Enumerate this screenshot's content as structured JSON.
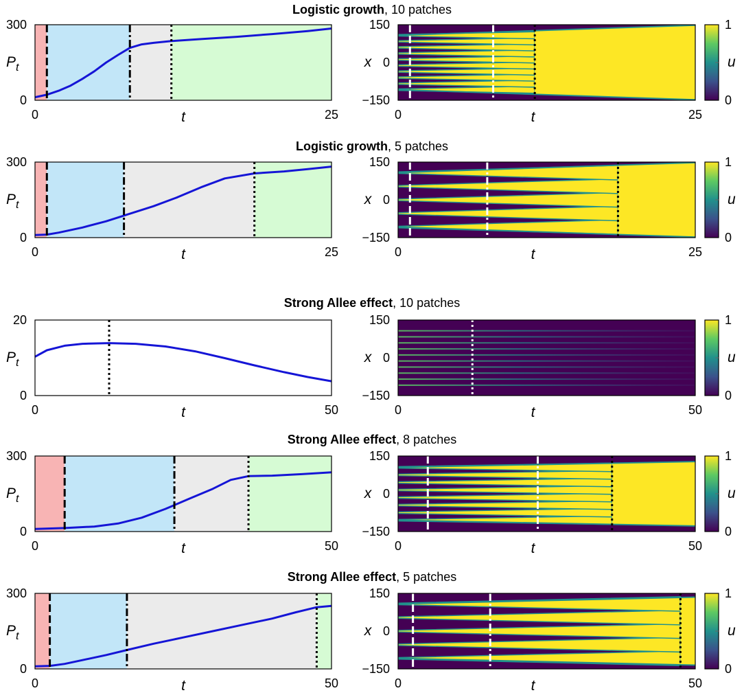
{
  "figure": {
    "label_pop": "P",
    "label_pop_sub": "t",
    "label_time": "t",
    "label_space": "x",
    "label_cbar": "u"
  },
  "colors": {
    "phase1": "#f8b4b4",
    "phase2": "#c2e6f8",
    "phase3": "#ebebeb",
    "phase4": "#d6fbd4",
    "curve": "#1515d6",
    "viridis_low": "#440154",
    "viridis_high": "#fde725"
  },
  "chart_data": [
    {
      "type": "line",
      "kind": "population",
      "title_bold": "Logistic growth",
      "title_rest": ", 10 patches",
      "xlabel": "t",
      "ylabel": "P_t",
      "xlim": [
        0,
        25
      ],
      "ylim": [
        0,
        300
      ],
      "xticks": [
        "0",
        "25"
      ],
      "yticks": [
        "0",
        "300"
      ],
      "phase_boundaries": [
        1,
        8,
        11.5,
        25
      ],
      "vlines": [
        {
          "x": 1,
          "style": "dashed"
        },
        {
          "x": 8,
          "style": "dashdot"
        },
        {
          "x": 11.5,
          "style": "dotted"
        }
      ],
      "series": [
        {
          "name": "P_t",
          "x": [
            0,
            1,
            2,
            3,
            4,
            5,
            6,
            7,
            8,
            9,
            10,
            11.5,
            14,
            17,
            20,
            23,
            25
          ],
          "values": [
            12,
            22,
            38,
            58,
            85,
            115,
            150,
            180,
            208,
            222,
            228,
            235,
            243,
            252,
            263,
            275,
            285
          ]
        }
      ]
    },
    {
      "type": "heatmap",
      "kind": "spacetime",
      "xlabel": "t",
      "ylabel": "x",
      "xlim": [
        0,
        25
      ],
      "ylim": [
        -150,
        150
      ],
      "xticks": [
        "0",
        "25"
      ],
      "yticks": [
        "150",
        "0",
        "−150"
      ],
      "colorbar": {
        "label": "u",
        "ticks": [
          "1",
          "0"
        ],
        "range": [
          0,
          1
        ]
      },
      "patches": [
        -108,
        -84,
        -60,
        -36,
        -12,
        12,
        36,
        60,
        84,
        108
      ],
      "patch_halfwidth": 3,
      "merge_time": 11.5,
      "front_start": 108,
      "front_end": 148,
      "vlines": [
        {
          "x": 1,
          "style": "dashed"
        },
        {
          "x": 8,
          "style": "dashdot"
        },
        {
          "x": 11.5,
          "style": "dotted"
        }
      ]
    },
    {
      "type": "line",
      "kind": "population",
      "title_bold": "Logistic growth",
      "title_rest": ", 5 patches",
      "xlabel": "t",
      "ylabel": "P_t",
      "xlim": [
        0,
        25
      ],
      "ylim": [
        0,
        300
      ],
      "xticks": [
        "0",
        "25"
      ],
      "yticks": [
        "0",
        "300"
      ],
      "phase_boundaries": [
        1,
        7.5,
        18.5,
        25
      ],
      "vlines": [
        {
          "x": 1,
          "style": "dashed"
        },
        {
          "x": 7.5,
          "style": "dashdot"
        },
        {
          "x": 18.5,
          "style": "dotted"
        }
      ],
      "series": [
        {
          "name": "P_t",
          "x": [
            0,
            1,
            2,
            4,
            6,
            8,
            10,
            12,
            14,
            16,
            18.5,
            21,
            23,
            25
          ],
          "values": [
            10,
            12,
            20,
            40,
            65,
            95,
            125,
            160,
            200,
            235,
            255,
            263,
            272,
            282
          ]
        }
      ]
    },
    {
      "type": "heatmap",
      "kind": "spacetime",
      "xlabel": "t",
      "ylabel": "x",
      "xlim": [
        0,
        25
      ],
      "ylim": [
        -150,
        150
      ],
      "xticks": [
        "0",
        "25"
      ],
      "yticks": [
        "150",
        "0",
        "−150"
      ],
      "colorbar": {
        "label": "u",
        "ticks": [
          "1",
          "0"
        ],
        "range": [
          0,
          1
        ]
      },
      "patches": [
        -108,
        -54,
        0,
        54,
        108
      ],
      "patch_halfwidth": 3,
      "merge_time": 18.5,
      "front_start": 108,
      "front_end": 148,
      "vlines": [
        {
          "x": 1,
          "style": "dashed"
        },
        {
          "x": 7.5,
          "style": "dashdot"
        },
        {
          "x": 18.5,
          "style": "dotted"
        }
      ]
    },
    {
      "type": "line",
      "kind": "population",
      "title_bold": "Strong Allee effect",
      "title_rest": ", 10 patches",
      "xlabel": "t",
      "ylabel": "P_t",
      "xlim": [
        0,
        50
      ],
      "ylim": [
        0,
        20
      ],
      "xticks": [
        "0",
        "50"
      ],
      "yticks": [
        "0",
        "20"
      ],
      "phase_boundaries": [],
      "vlines": [
        {
          "x": 12.5,
          "style": "dotted"
        }
      ],
      "series": [
        {
          "name": "P_t",
          "x": [
            0,
            2,
            5,
            8,
            12.5,
            17,
            22,
            27,
            32,
            37,
            42,
            46,
            50
          ],
          "values": [
            10.3,
            12,
            13.2,
            13.7,
            13.9,
            13.7,
            13,
            11.7,
            9.9,
            8,
            6.2,
            4.9,
            3.8
          ]
        }
      ]
    },
    {
      "type": "heatmap",
      "kind": "spacetime",
      "xlabel": "t",
      "ylabel": "x",
      "xlim": [
        0,
        50
      ],
      "ylim": [
        -150,
        150
      ],
      "xticks": [
        "0",
        "50"
      ],
      "yticks": [
        "150",
        "0",
        "−150"
      ],
      "colorbar": {
        "label": "u",
        "ticks": [
          "1",
          "0"
        ],
        "range": [
          0,
          1
        ]
      },
      "patches": [
        -108,
        -84,
        -60,
        -36,
        -12,
        12,
        36,
        60,
        84,
        108
      ],
      "patch_halfwidth": 2,
      "decay": true,
      "vlines": [
        {
          "x": 12.5,
          "style": "dotted"
        }
      ]
    },
    {
      "type": "line",
      "kind": "population",
      "title_bold": "Strong Allee effect",
      "title_rest": ", 8 patches",
      "xlabel": "t",
      "ylabel": "P_t",
      "xlim": [
        0,
        50
      ],
      "ylim": [
        0,
        300
      ],
      "xticks": [
        "0",
        "50"
      ],
      "yticks": [
        "0",
        "300"
      ],
      "phase_boundaries": [
        5,
        23.5,
        36,
        50
      ],
      "vlines": [
        {
          "x": 5,
          "style": "dashed"
        },
        {
          "x": 23.5,
          "style": "dashdot"
        },
        {
          "x": 36,
          "style": "dotted"
        }
      ],
      "series": [
        {
          "name": "P_t",
          "x": [
            0,
            5,
            10,
            14,
            18,
            22,
            26,
            30,
            33,
            36,
            40,
            45,
            50
          ],
          "values": [
            10,
            14,
            20,
            32,
            55,
            90,
            130,
            170,
            205,
            220,
            222,
            228,
            235
          ]
        }
      ]
    },
    {
      "type": "heatmap",
      "kind": "spacetime",
      "xlabel": "t",
      "ylabel": "x",
      "xlim": [
        0,
        50
      ],
      "ylim": [
        -150,
        150
      ],
      "xticks": [
        "0",
        "50"
      ],
      "yticks": [
        "150",
        "0",
        "−150"
      ],
      "colorbar": {
        "label": "u",
        "ticks": [
          "1",
          "0"
        ],
        "range": [
          0,
          1
        ]
      },
      "patches": [
        -105,
        -75,
        -45,
        -15,
        15,
        45,
        75,
        105
      ],
      "patch_halfwidth": 3,
      "merge_time": 36,
      "front_start": 105,
      "front_end": 128,
      "vlines": [
        {
          "x": 5,
          "style": "dashed"
        },
        {
          "x": 23.5,
          "style": "dashdot"
        },
        {
          "x": 36,
          "style": "dotted"
        }
      ]
    },
    {
      "type": "line",
      "kind": "population",
      "title_bold": "Strong Allee effect",
      "title_rest": ", 5 patches",
      "xlabel": "t",
      "ylabel": "P_t",
      "xlim": [
        0,
        50
      ],
      "ylim": [
        0,
        300
      ],
      "xticks": [
        "0",
        "50"
      ],
      "yticks": [
        "0",
        "300"
      ],
      "phase_boundaries": [
        2.5,
        15.5,
        47.5,
        50
      ],
      "vlines": [
        {
          "x": 2.5,
          "style": "dashed"
        },
        {
          "x": 15.5,
          "style": "dashdot"
        },
        {
          "x": 47.5,
          "style": "dotted"
        }
      ],
      "series": [
        {
          "name": "P_t",
          "x": [
            0,
            2.5,
            5,
            8,
            12,
            15.5,
            20,
            25,
            30,
            35,
            40,
            44,
            47.5,
            50
          ],
          "values": [
            10,
            12,
            20,
            35,
            55,
            75,
            100,
            125,
            150,
            175,
            200,
            225,
            245,
            250
          ]
        }
      ]
    },
    {
      "type": "heatmap",
      "kind": "spacetime",
      "xlabel": "t",
      "ylabel": "x",
      "xlim": [
        0,
        50
      ],
      "ylim": [
        -150,
        150
      ],
      "xticks": [
        "0",
        "50"
      ],
      "yticks": [
        "150",
        "0",
        "−150"
      ],
      "colorbar": {
        "label": "u",
        "ticks": [
          "1",
          "0"
        ],
        "range": [
          0,
          1
        ]
      },
      "patches": [
        -108,
        -54,
        0,
        54,
        108
      ],
      "patch_halfwidth": 3,
      "merge_time": 47.5,
      "front_start": 108,
      "front_end": 135,
      "vlines": [
        {
          "x": 2.5,
          "style": "dashed"
        },
        {
          "x": 15.5,
          "style": "dashdot"
        },
        {
          "x": 47.5,
          "style": "dotted"
        }
      ]
    }
  ]
}
